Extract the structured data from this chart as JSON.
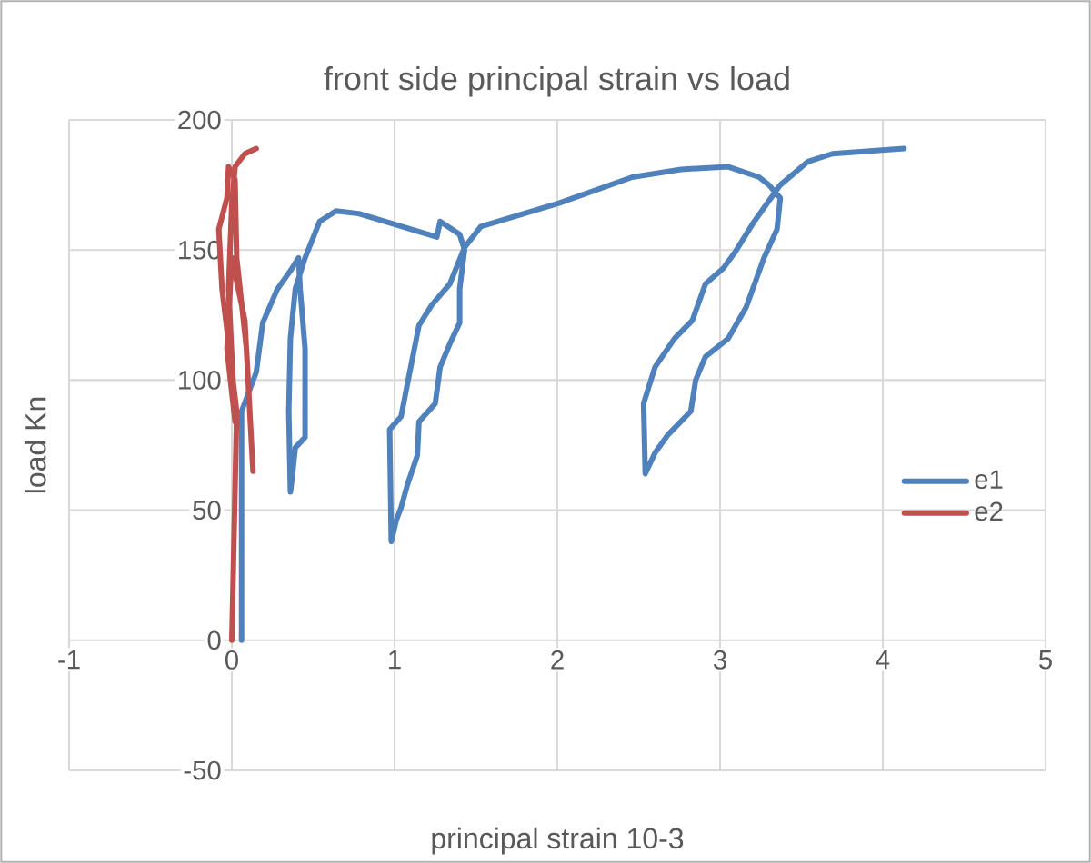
{
  "chart_data": {
    "type": "line",
    "title": "front side principal strain vs load",
    "xlabel": "principal strain  10-3",
    "ylabel": "load  Kn",
    "xlim": [
      -1,
      5
    ],
    "ylim": [
      -50,
      200
    ],
    "xticks": [
      -1,
      0,
      1,
      2,
      3,
      4,
      5
    ],
    "yticks": [
      -50,
      0,
      50,
      100,
      150,
      200
    ],
    "grid": true,
    "legend": "right",
    "marker": "none",
    "line_style": "solid",
    "series": [
      {
        "name": "e1",
        "color": "#4f81bd",
        "x": [
          0.06,
          0.06,
          0.15,
          0.19,
          0.28,
          0.36,
          0.41,
          0.42,
          0.45,
          0.45,
          0.39,
          0.37,
          0.36,
          0.35,
          0.36,
          0.39,
          0.45,
          0.54,
          0.64,
          0.78,
          1.26,
          1.28,
          1.4,
          1.43,
          1.4,
          1.4,
          1.34,
          1.28,
          1.25,
          1.15,
          1.14,
          1.08,
          1.04,
          1.01,
          0.98,
          0.97,
          1.04,
          1.09,
          1.15,
          1.23,
          1.34,
          1.43,
          1.53,
          2.01,
          2.46,
          2.76,
          3.05,
          3.24,
          3.3,
          3.37,
          3.35,
          3.27,
          3.16,
          3.05,
          2.91,
          2.85,
          2.82,
          2.68,
          2.6,
          2.54,
          2.53,
          2.6,
          2.72,
          2.83,
          2.91,
          3.02,
          3.09,
          3.21,
          3.37,
          3.54,
          3.69,
          4.13
        ],
        "values": [
          0,
          88,
          103,
          122,
          135,
          142,
          147,
          135,
          112,
          78,
          74,
          62,
          57,
          88,
          116,
          135,
          147,
          161,
          165,
          164,
          155,
          161,
          156,
          150,
          135,
          122,
          114,
          105,
          91,
          84,
          71,
          60,
          51,
          46,
          38,
          81,
          86,
          102,
          121,
          129,
          137,
          151,
          159,
          168,
          178,
          181,
          182,
          178,
          175,
          170,
          158,
          147,
          128,
          116,
          109,
          100,
          88,
          79,
          72,
          64,
          91,
          105,
          116,
          123,
          137,
          143,
          149,
          161,
          175,
          184,
          187,
          189
        ]
      },
      {
        "name": "e2",
        "color": "#c0504d",
        "x": [
          0,
          0.03,
          -0.06,
          -0.08,
          -0.03,
          -0.02,
          0.02,
          0.03,
          0.09,
          0.13,
          0.08,
          0,
          -0.03,
          0.02,
          -0.02,
          0,
          0.02,
          0.08,
          0.15
        ],
        "values": [
          0,
          88,
          135,
          158,
          170,
          182,
          177,
          147,
          112,
          65,
          123,
          147,
          112,
          84,
          135,
          168,
          182,
          187,
          189
        ]
      }
    ]
  }
}
